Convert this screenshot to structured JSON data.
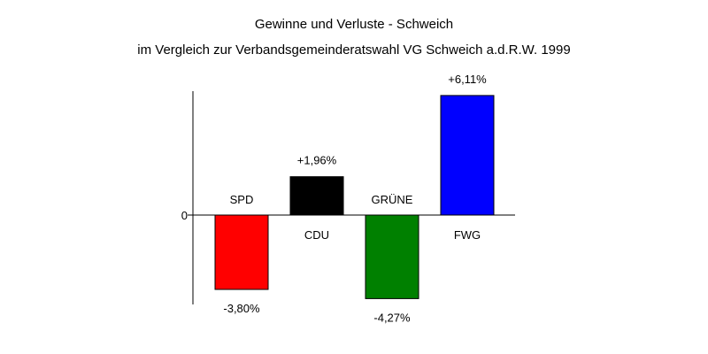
{
  "chart_data": {
    "type": "bar",
    "title": "Gewinne und Verluste - Schweich",
    "subtitle": "im Vergleich zur Verbandsgemeinderatswahl VG Schweich a.d.R.W. 1999",
    "xlabel": "",
    "ylabel": "",
    "ylim": [
      -4.5,
      6.4
    ],
    "grid": false,
    "zero_tick_label": "0",
    "categories": [
      "SPD",
      "CDU",
      "GRÜNE",
      "FWG"
    ],
    "values": [
      -3.8,
      1.96,
      -4.27,
      6.11
    ],
    "value_labels": [
      "-3,80%",
      "+1,96%",
      "-4,27%",
      "+6,11%"
    ],
    "colors": [
      "#ff0000",
      "#000000",
      "#008000",
      "#0000ff"
    ]
  }
}
